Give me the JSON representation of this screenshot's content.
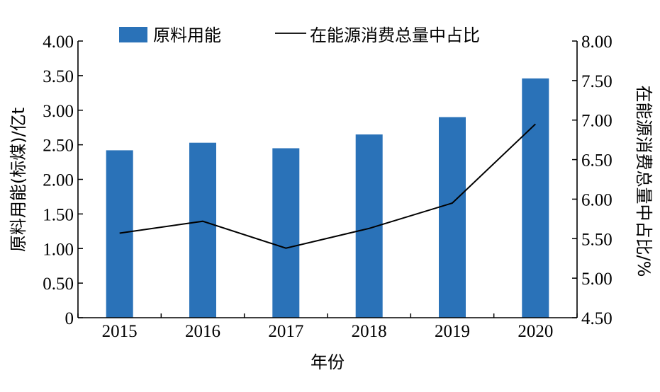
{
  "chart_data": {
    "type": "bar",
    "categories": [
      "2015",
      "2016",
      "2017",
      "2018",
      "2019",
      "2020"
    ],
    "series": [
      {
        "name": "原料用能",
        "type": "bar",
        "axis": "left",
        "color": "#2a72b8",
        "values": [
          2.42,
          2.53,
          2.45,
          2.65,
          2.9,
          3.46
        ]
      },
      {
        "name": "在能源消费总量中占比",
        "type": "line",
        "axis": "right",
        "color": "#000000",
        "values": [
          5.57,
          5.72,
          5.38,
          5.63,
          5.95,
          6.95
        ]
      }
    ],
    "xlabel": "年份",
    "ylabel_left": "原料用能(标煤)/亿t",
    "ylabel_right": "在能源消费总量中占比/%",
    "ylim_left": [
      0,
      4.0
    ],
    "ylim_right": [
      4.5,
      8.0
    ],
    "yticks_left": [
      "0",
      "0.50",
      "1.00",
      "1.50",
      "2.00",
      "2.50",
      "3.00",
      "3.50",
      "4.00"
    ],
    "yticks_right": [
      "4.50",
      "5.00",
      "5.50",
      "6.00",
      "6.50",
      "7.00",
      "7.50",
      "8.00"
    ],
    "legend_position": "top",
    "grid": false
  }
}
